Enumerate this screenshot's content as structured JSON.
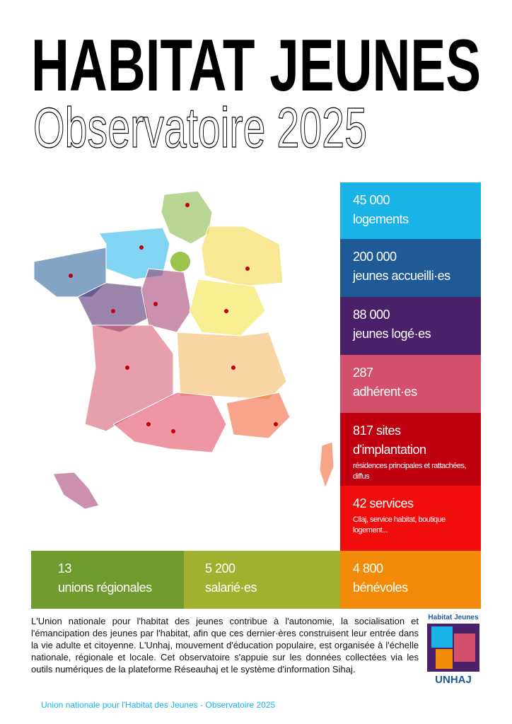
{
  "header": {
    "title": "HABITAT JEUNES",
    "subtitle": "Observatoire 2025"
  },
  "stats": [
    {
      "number": "45 000",
      "label": "logements"
    },
    {
      "number": "200 000",
      "label": "jeunes accueilli·es"
    },
    {
      "number": "88 000",
      "label": "jeunes logé·es"
    },
    {
      "number": "287",
      "label": "adhérent·es"
    },
    {
      "number": "817 sites",
      "label": "d'implantation",
      "detail": "résidences principales et rattachées, diffus"
    },
    {
      "number": "42 services",
      "detail": "Cllaj, service habitat, boutique logement..."
    },
    {
      "number": "13",
      "label": "unions régionales"
    },
    {
      "number": "5 200",
      "label": "salarié·es"
    },
    {
      "number": "4 800",
      "label": "bénévoles"
    }
  ],
  "description": "L'Union nationale pour l'habitat des jeunes contribue à l'autonomie, la socialisation et l'émancipation des jeunes par l'habitat, afin que ces dernier·ères construisent leur entrée dans la vie adulte et citoyenne. L'Unhaj, mouvement d'éducation populaire, est organisée à l'échelle nationale, régionale et locale. Cet observatoire s'appuie sur les données collectées via les outils numériques de la plateforme Réseauhaj et le système d'information Sihaj.",
  "logo": {
    "brand": "Habitat Jeunes",
    "name": "UNHAJ"
  },
  "footer": "Union nationale pour l'Habitat des Jeunes - Observatoire 2025"
}
